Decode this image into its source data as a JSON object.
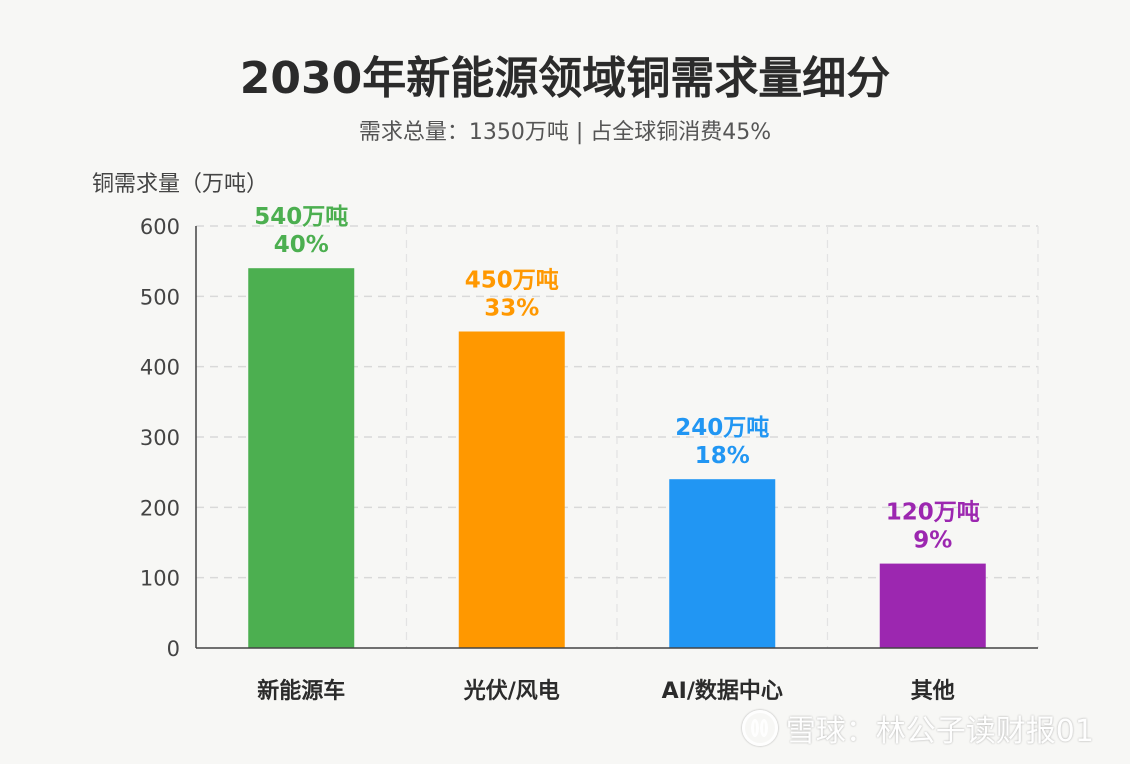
{
  "chart_data": {
    "type": "bar",
    "title": "2030年新能源领域铜需求量细分",
    "subtitle": "需求总量：1350万吨 | 占全球铜消费45%",
    "ylabel": "铜需求量（万吨）",
    "xlabel": "",
    "ylim": [
      0,
      600
    ],
    "yticks": [
      0,
      100,
      200,
      300,
      400,
      500,
      600
    ],
    "grid": true,
    "categories": [
      "新能源车",
      "光伏/风电",
      "AI/数据中心",
      "其他"
    ],
    "values": [
      540,
      450,
      240,
      120
    ],
    "value_labels": [
      "540万吨",
      "450万吨",
      "240万吨",
      "120万吨"
    ],
    "percent_labels": [
      "40%",
      "33%",
      "18%",
      "9%"
    ],
    "colors": [
      "#4caf50",
      "#ff9800",
      "#2196f3",
      "#9c27b0"
    ]
  },
  "watermark": {
    "icon": "snowball-logo-icon",
    "text": "雪球：林公子读财报01"
  }
}
